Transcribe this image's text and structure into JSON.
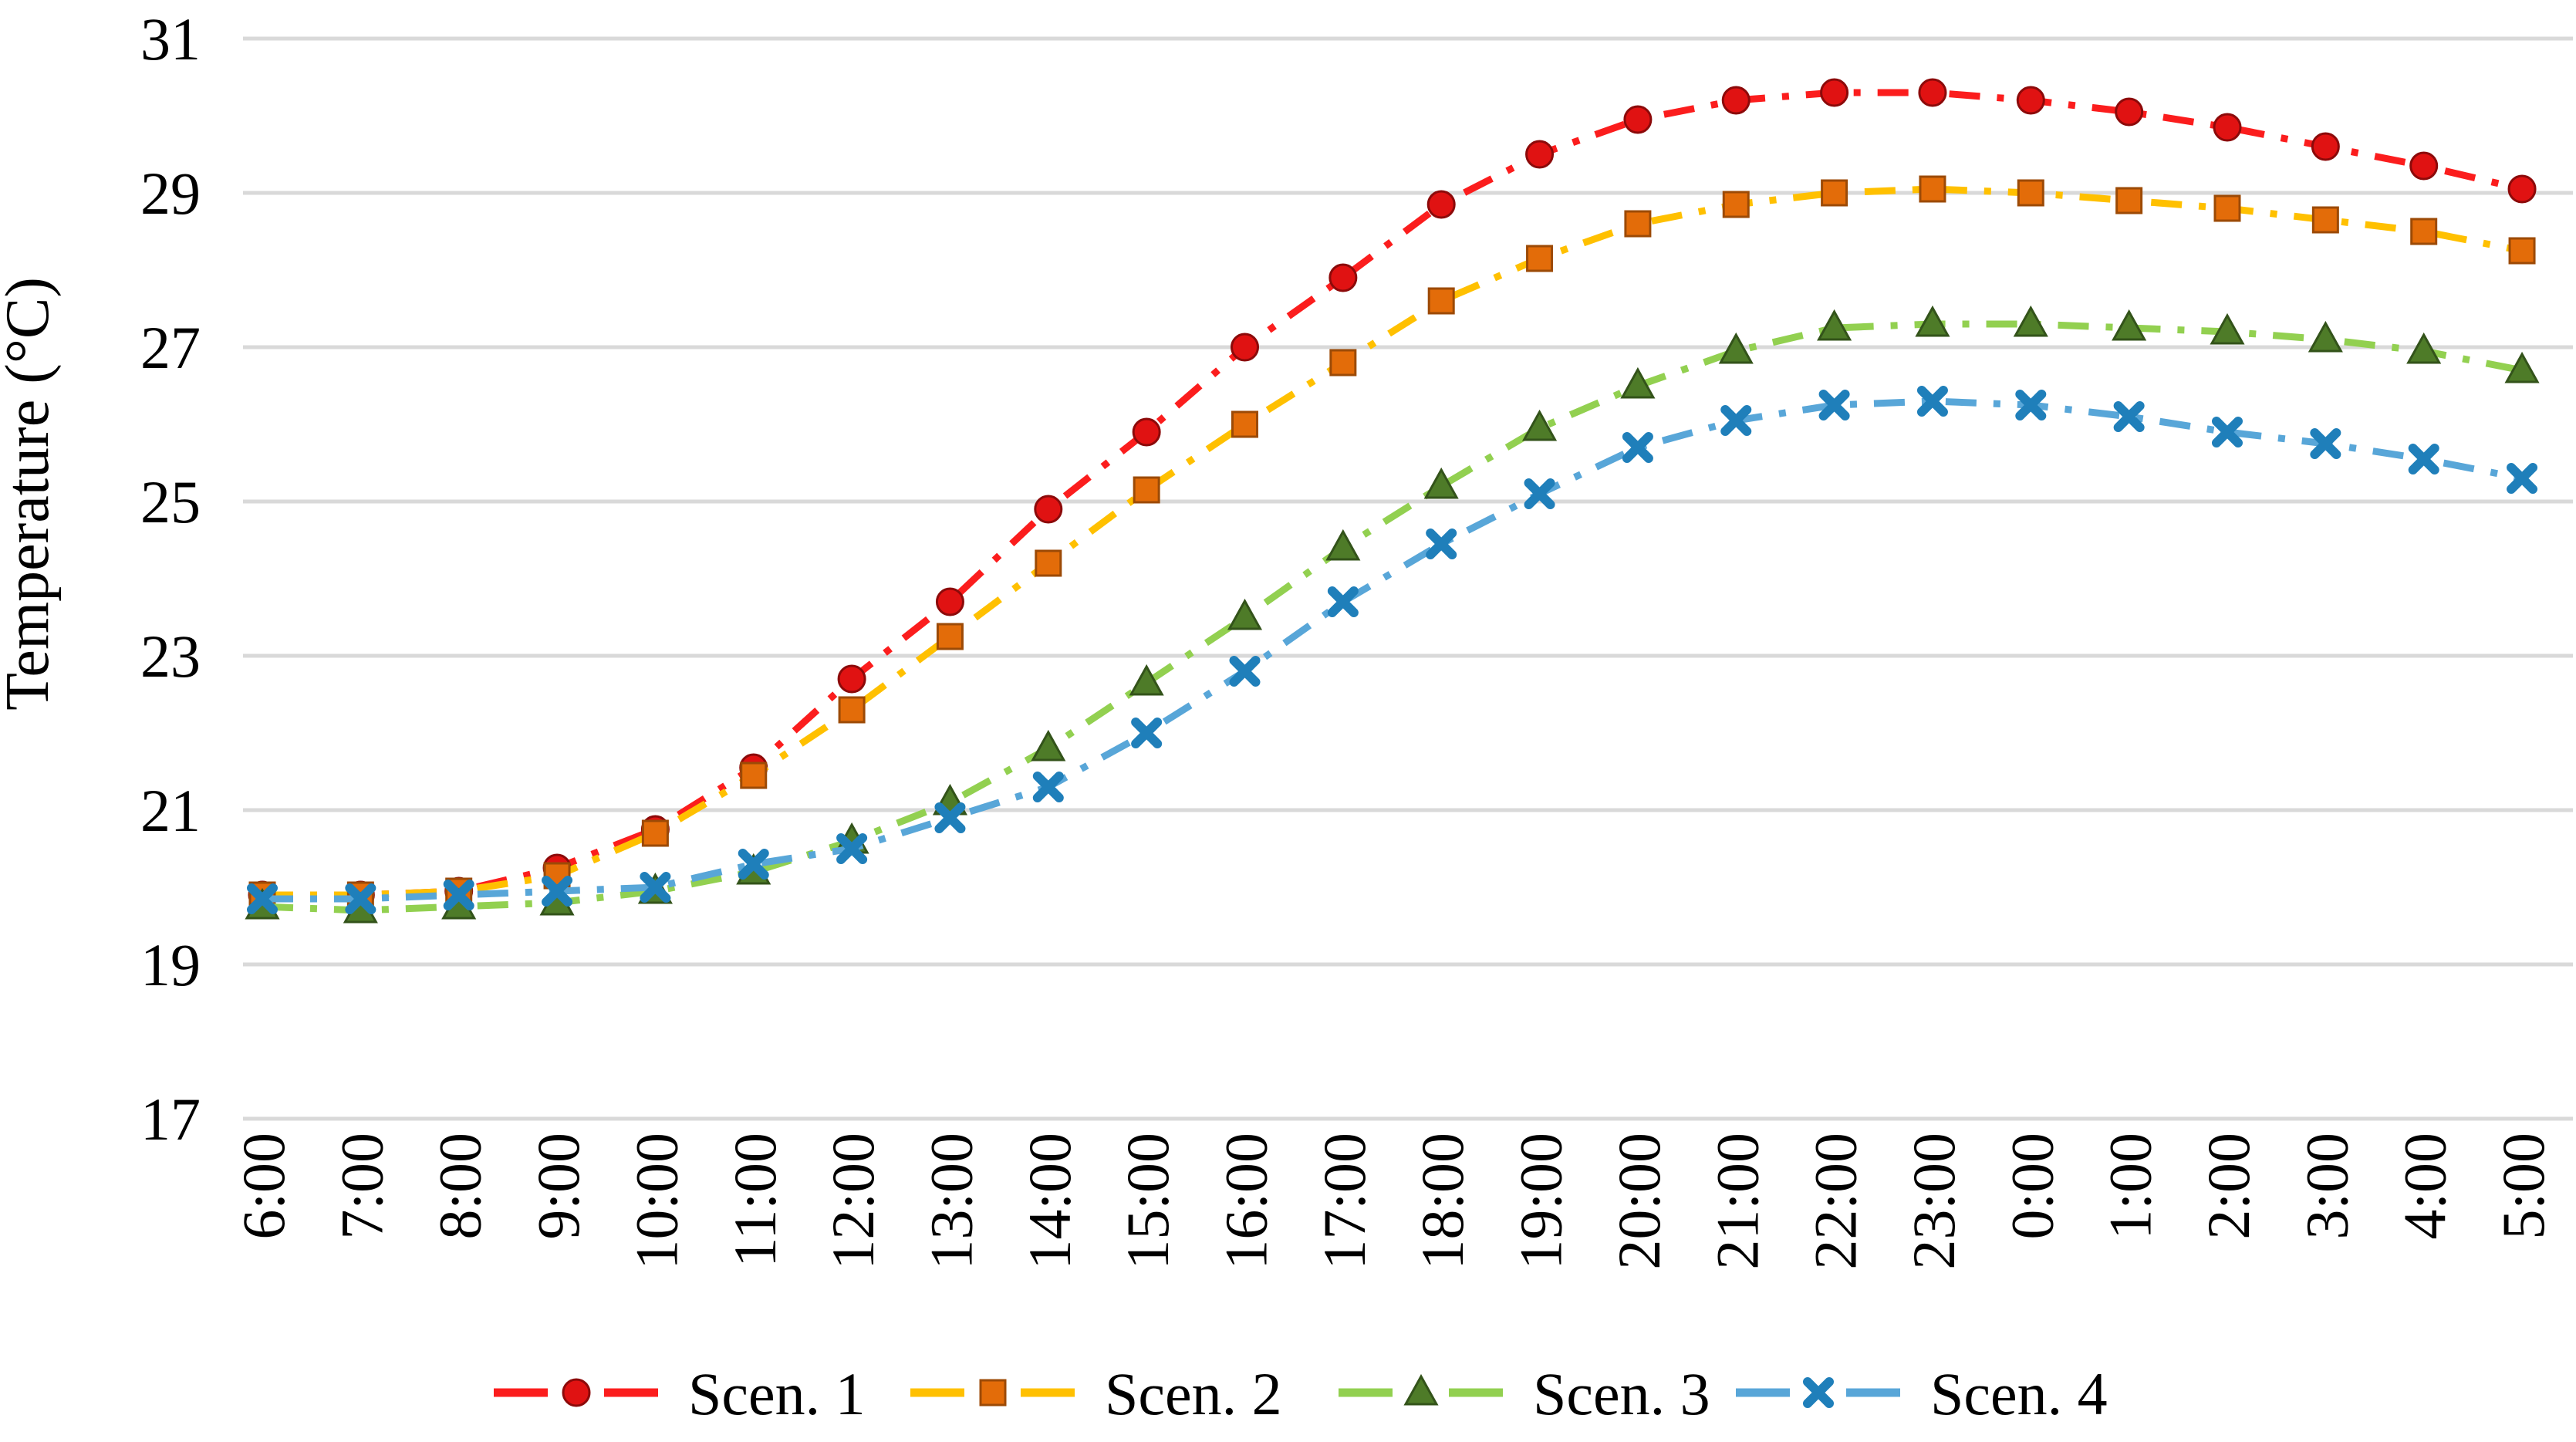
{
  "chart_data": {
    "type": "line",
    "title": "",
    "xlabel": "",
    "ylabel": "Temperature (°C)",
    "x": [
      "6:00",
      "7:00",
      "8:00",
      "9:00",
      "10:00",
      "11:00",
      "12:00",
      "13:00",
      "14:00",
      "15:00",
      "16:00",
      "17:00",
      "18:00",
      "19:00",
      "20:00",
      "21:00",
      "22:00",
      "23:00",
      "0:00",
      "1:00",
      "2:00",
      "3:00",
      "4:00",
      "5:00"
    ],
    "series": [
      {
        "name": "Scen. 1",
        "marker": "circle",
        "line_color": "#fb1d1d",
        "marker_color": "#e01212",
        "marker_edge_color": "#8c0a0a",
        "values": [
          19.9,
          19.9,
          19.95,
          20.25,
          20.75,
          21.55,
          22.7,
          23.7,
          24.9,
          25.9,
          27.0,
          27.9,
          28.85,
          29.5,
          29.95,
          30.2,
          30.3,
          30.3,
          30.2,
          30.05,
          29.85,
          29.6,
          29.35,
          29.05
        ]
      },
      {
        "name": "Scen. 2",
        "marker": "square",
        "line_color": "#ffc000",
        "marker_color": "#e36c09",
        "marker_edge_color": "#9c4a06",
        "values": [
          19.9,
          19.9,
          19.95,
          20.15,
          20.7,
          21.45,
          22.3,
          23.25,
          24.2,
          25.15,
          26.0,
          26.8,
          27.6,
          28.15,
          28.6,
          28.85,
          29.0,
          29.05,
          29.0,
          28.9,
          28.8,
          28.65,
          28.5,
          28.25
        ]
      },
      {
        "name": "Scen. 3",
        "marker": "triangle",
        "line_color": "#92d050",
        "marker_color": "#4e7b28",
        "marker_edge_color": "#33531a",
        "values": [
          19.75,
          19.7,
          19.75,
          19.8,
          19.95,
          20.2,
          20.6,
          21.1,
          21.8,
          22.65,
          23.5,
          24.4,
          25.2,
          25.95,
          26.5,
          26.95,
          27.25,
          27.3,
          27.3,
          27.25,
          27.2,
          27.1,
          26.95,
          26.7
        ]
      },
      {
        "name": "Scen. 4",
        "marker": "x",
        "line_color": "#58a6d8",
        "marker_color": "#1f7fba",
        "marker_edge_color": "#10567f",
        "values": [
          19.85,
          19.85,
          19.9,
          19.95,
          20.0,
          20.3,
          20.5,
          20.9,
          21.3,
          22.0,
          22.8,
          23.7,
          24.45,
          25.1,
          25.7,
          26.05,
          26.25,
          26.3,
          26.25,
          26.1,
          25.9,
          25.75,
          25.55,
          25.3
        ]
      }
    ],
    "ylim": [
      17,
      31
    ],
    "yticks": [
      31,
      29,
      27,
      25,
      23,
      21,
      19,
      17
    ],
    "grid": true,
    "gridline_color": "#d9d9d9",
    "background_color": "#ffffff",
    "legend_position": "bottom",
    "legend_labels": [
      "Scen. 1",
      "Scen. 2",
      "Scen. 3",
      "Scen. 4"
    ]
  }
}
